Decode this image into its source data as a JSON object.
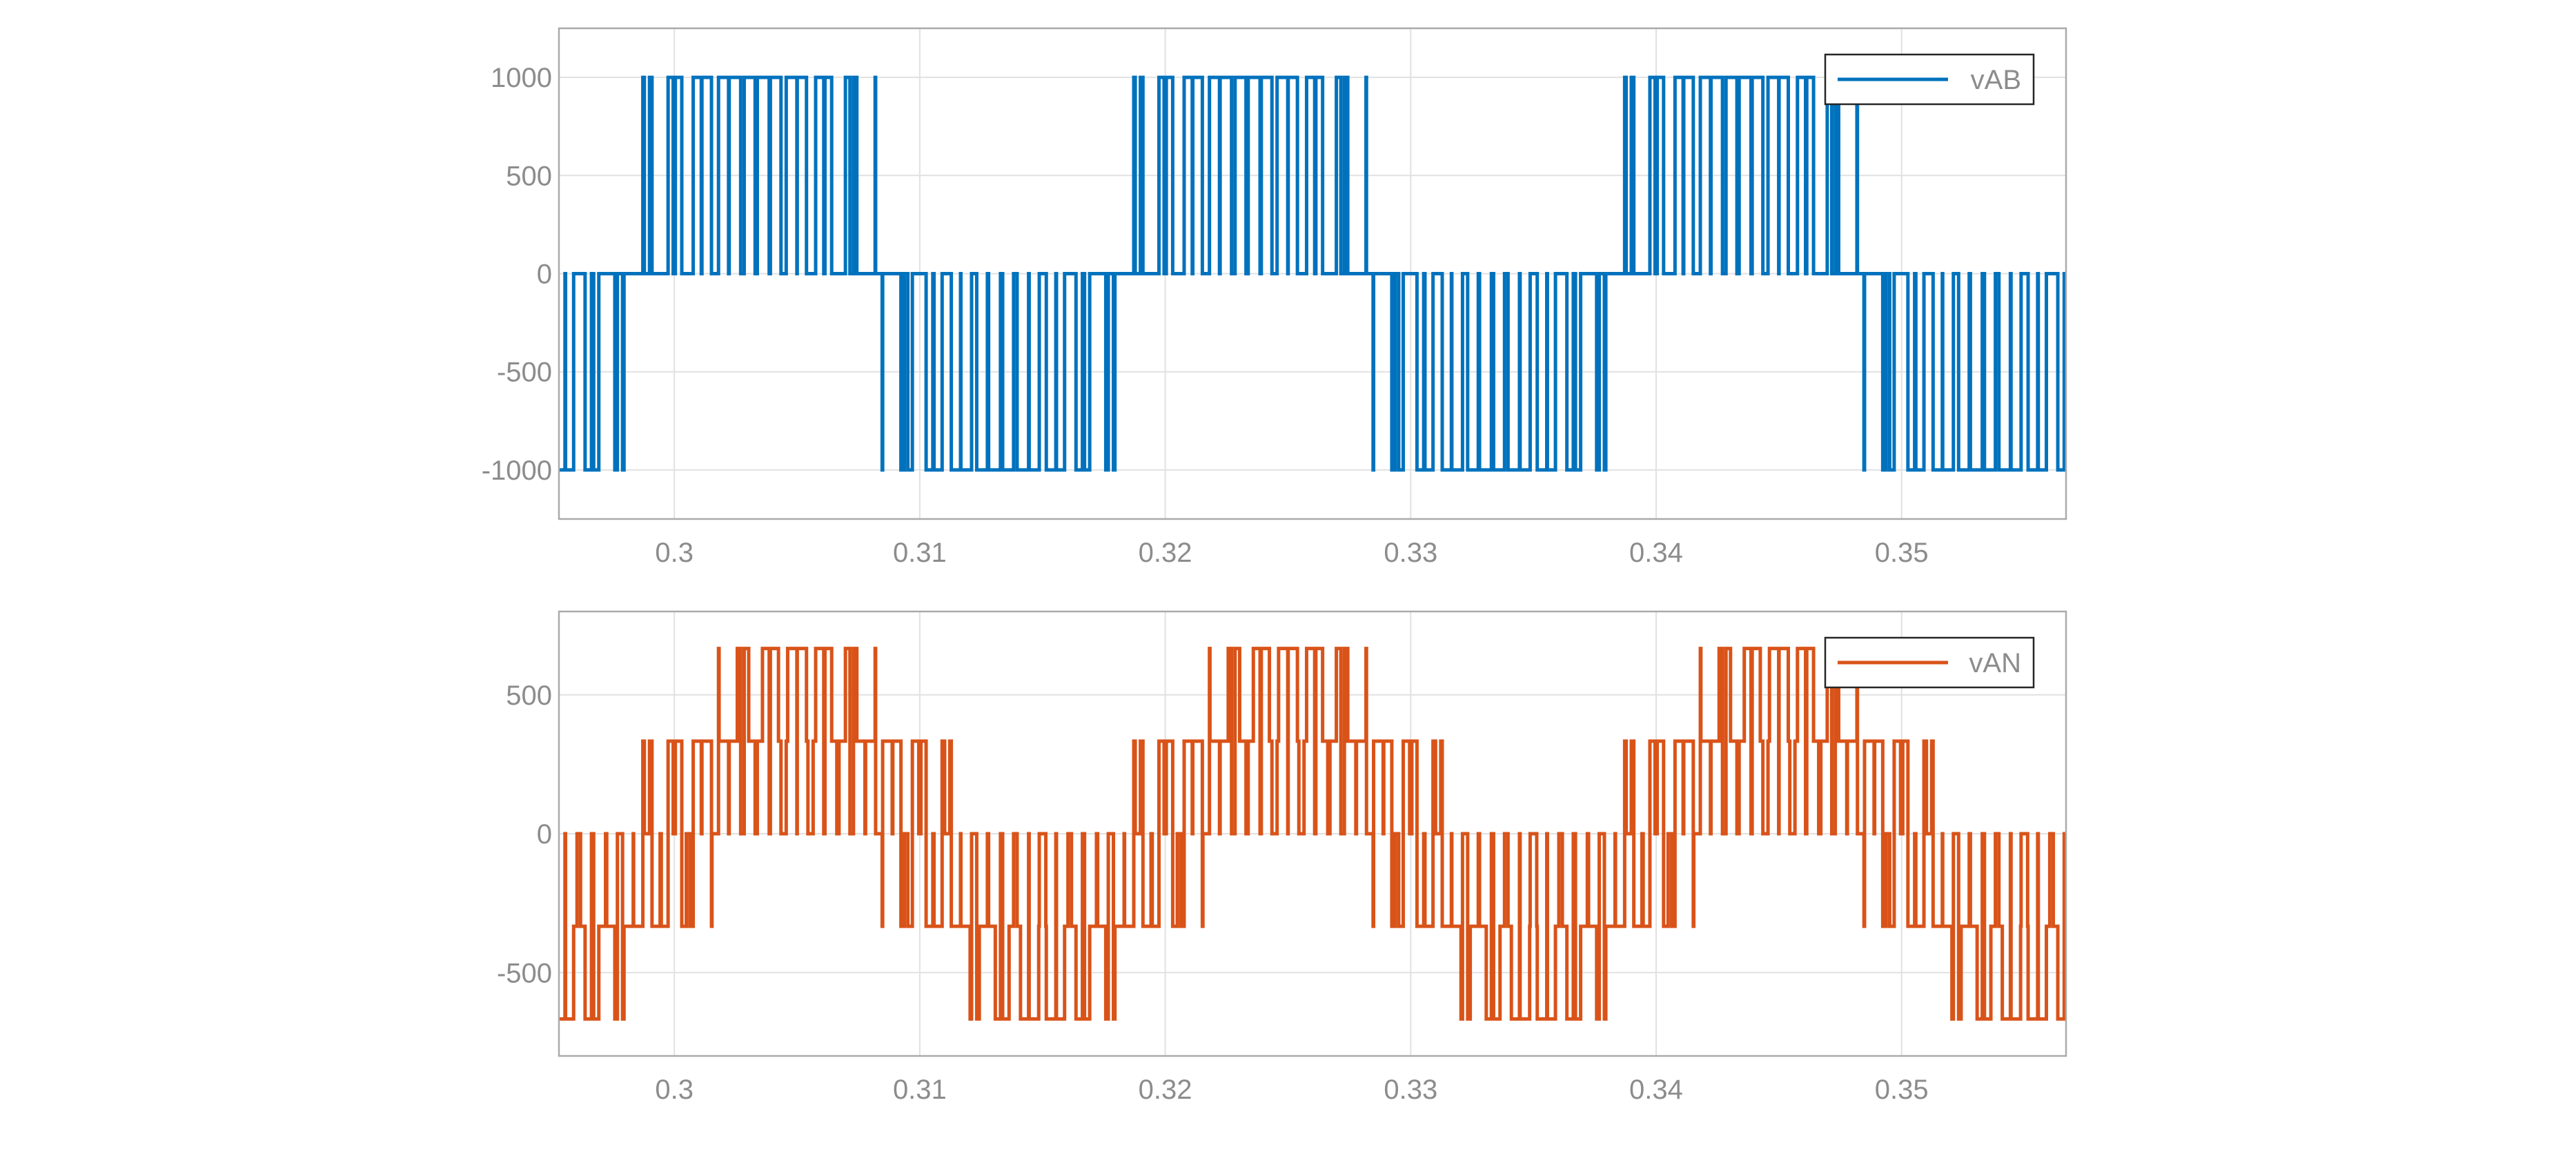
{
  "chart_data": [
    {
      "type": "line",
      "xlim": [
        0.2953,
        0.3567
      ],
      "ylim": [
        -1250,
        1250
      ],
      "xticks": [
        0.3,
        0.31,
        0.32,
        0.33,
        0.34,
        0.35
      ],
      "xtick_labels": [
        "0.3",
        "0.31",
        "0.32",
        "0.33",
        "0.34",
        "0.35"
      ],
      "yticks": [
        -1000,
        -500,
        0,
        500,
        1000
      ],
      "ytick_labels": [
        "-1000",
        "-500",
        "0",
        "500",
        "1000"
      ],
      "grid": true,
      "legend_position": "top-right",
      "series": [
        {
          "name": "vAB",
          "color": "#0072BD",
          "waveform": "unipolar-pwm-line-voltage",
          "fundamental_frequency_hz": 50,
          "carrier_pulses_per_half_cycle": 9,
          "levels": [
            -1000,
            0,
            1000
          ]
        }
      ]
    },
    {
      "type": "line",
      "xlim": [
        0.2953,
        0.3567
      ],
      "ylim": [
        -800,
        800
      ],
      "xticks": [
        0.3,
        0.31,
        0.32,
        0.33,
        0.34,
        0.35
      ],
      "xtick_labels": [
        "0.3",
        "0.31",
        "0.32",
        "0.33",
        "0.34",
        "0.35"
      ],
      "yticks": [
        -500,
        0,
        500
      ],
      "ytick_labels": [
        "-500",
        "0",
        "500"
      ],
      "grid": true,
      "legend_position": "top-right",
      "series": [
        {
          "name": "vAN",
          "color": "#D95319",
          "waveform": "six-step-pwm-phase-voltage",
          "fundamental_frequency_hz": 50,
          "levels": [
            -667,
            -333,
            0,
            333,
            667
          ]
        }
      ]
    }
  ]
}
